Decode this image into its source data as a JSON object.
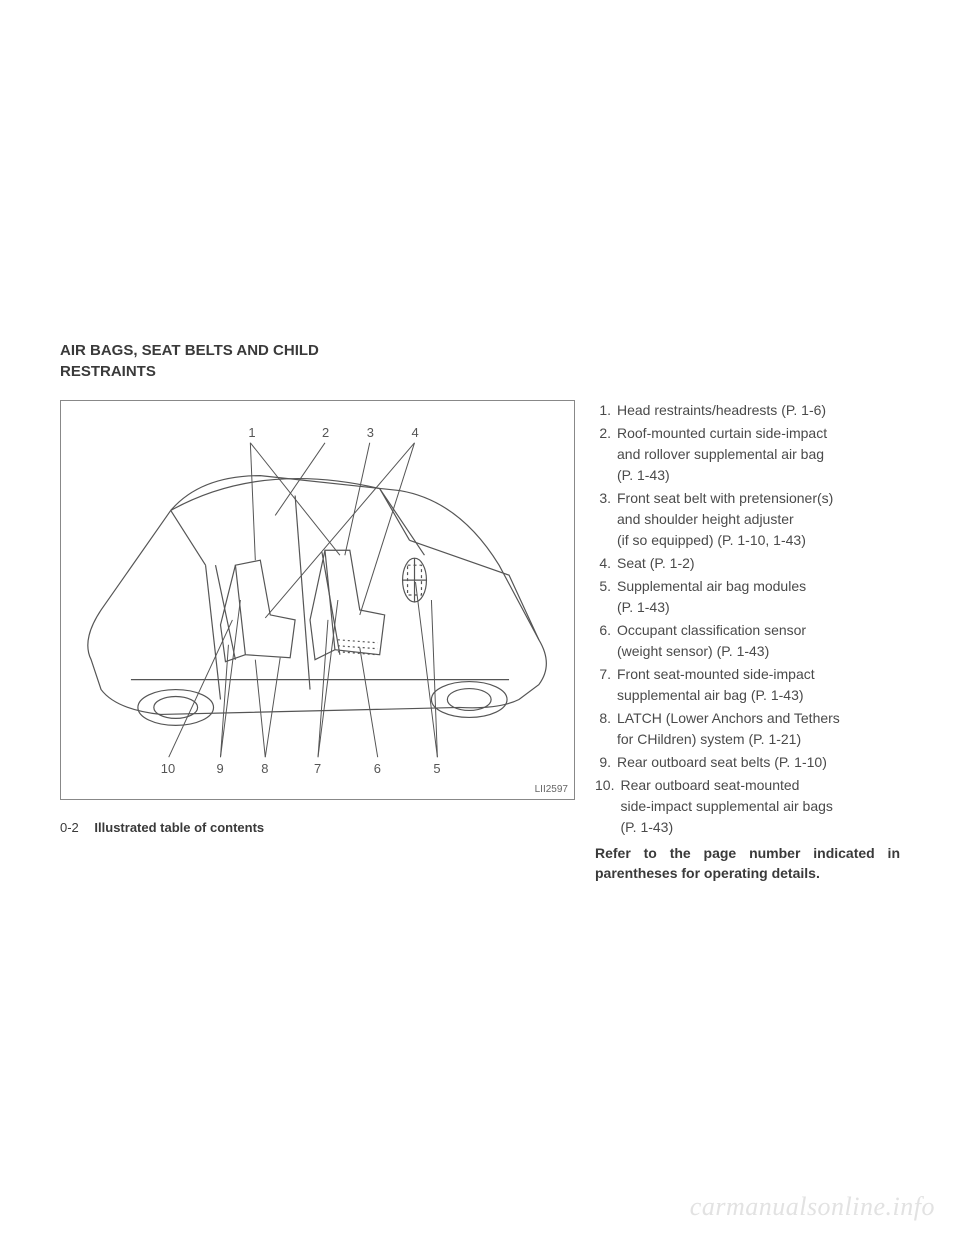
{
  "section_title_line1": "AIR BAGS, SEAT BELTS AND CHILD",
  "section_title_line2": "RESTRAINTS",
  "diagram": {
    "code": "LII2597",
    "top_callouts": [
      "1",
      "2",
      "3",
      "4"
    ],
    "bottom_callouts": [
      "10",
      "9",
      "8",
      "7",
      "6",
      "5"
    ]
  },
  "items": [
    {
      "num": "1.",
      "lines": [
        "Head restraints/headrests (P. 1-6)"
      ]
    },
    {
      "num": "2.",
      "lines": [
        "Roof-mounted curtain side-impact",
        "and rollover supplemental air bag",
        "(P. 1-43)"
      ]
    },
    {
      "num": "3.",
      "lines": [
        "Front seat belt with pretensioner(s)",
        "and shoulder height adjuster",
        "(if so equipped) (P. 1-10, 1-43)"
      ]
    },
    {
      "num": "4.",
      "lines": [
        "Seat (P. 1-2)"
      ]
    },
    {
      "num": "5.",
      "lines": [
        "Supplemental air bag modules",
        "(P. 1-43)"
      ]
    },
    {
      "num": "6.",
      "lines": [
        "Occupant classification sensor",
        "(weight sensor) (P. 1-43)"
      ]
    },
    {
      "num": "7.",
      "lines": [
        "Front seat-mounted side-impact",
        "supplemental air bag (P. 1-43)"
      ]
    },
    {
      "num": "8.",
      "lines": [
        "LATCH (Lower Anchors and Tethers",
        "for CHildren) system (P. 1-21)"
      ]
    },
    {
      "num": "9.",
      "lines": [
        "Rear outboard seat belts (P. 1-10)"
      ]
    },
    {
      "num": "10.",
      "lines": [
        "Rear outboard seat-mounted",
        "side-impact supplemental air bags",
        "(P. 1-43)"
      ]
    }
  ],
  "refer_text": "Refer to the page number indicated in parentheses for operating details.",
  "footer": {
    "page": "0-2",
    "section": "Illustrated table of contents"
  },
  "watermark": "carmanualsonline.info"
}
